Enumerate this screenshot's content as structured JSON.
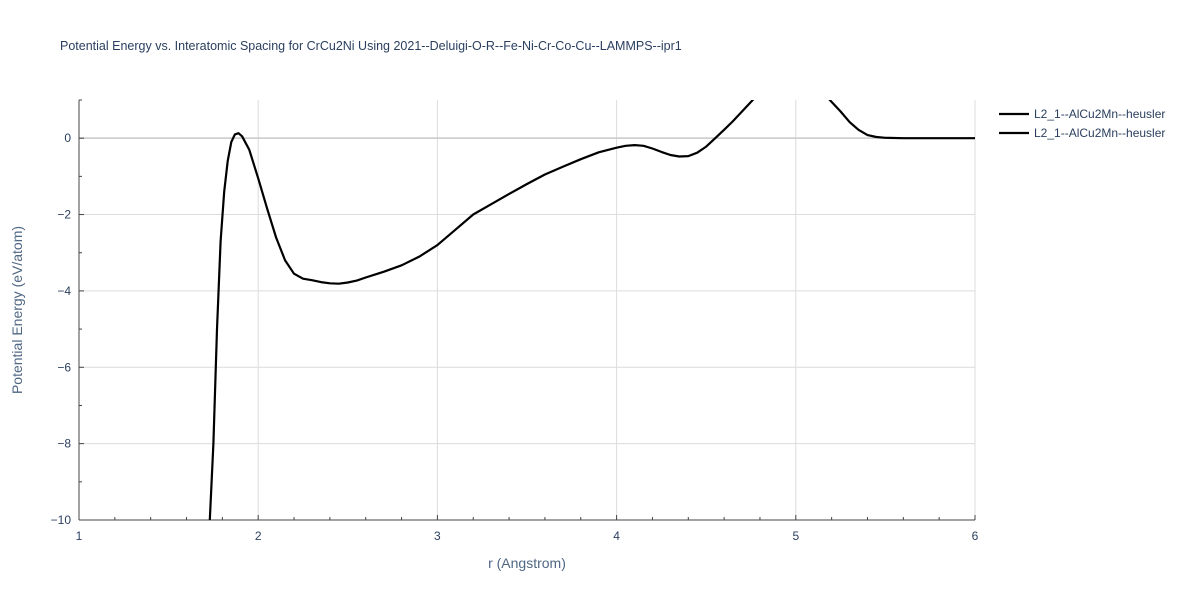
{
  "chart_data": {
    "type": "line",
    "title": "Potential Energy vs. Interatomic Spacing for CrCu2Ni Using 2021--Deluigi-O-R--Fe-Ni-Cr-Co-Cu--LAMMPS--ipr1",
    "xlabel": "r (Angstrom)",
    "ylabel": "Potential Energy (eV/atom)",
    "xlim": [
      1,
      6
    ],
    "ylim": [
      -10,
      1
    ],
    "x_ticks": [
      1,
      2,
      3,
      4,
      5,
      6
    ],
    "y_ticks": [
      0,
      -2,
      -4,
      -6,
      -8,
      -10
    ],
    "x_tick_labels": [
      "1",
      "2",
      "3",
      "4",
      "5",
      "6"
    ],
    "y_tick_labels": [
      "0",
      "−2",
      "−4",
      "−6",
      "−8",
      "−10"
    ],
    "grid": true,
    "legend_position": "top-right",
    "line_color": "#000000",
    "series": [
      {
        "name": "L2_1--AlCu2Mn--heusler",
        "x": [
          1.73,
          1.75,
          1.77,
          1.79,
          1.81,
          1.83,
          1.85,
          1.87,
          1.89,
          1.91,
          1.95,
          2.0,
          2.05,
          2.1,
          2.15,
          2.2,
          2.25,
          2.3,
          2.35,
          2.4,
          2.45,
          2.5,
          2.55,
          2.6,
          2.7,
          2.8,
          2.9,
          3.0,
          3.1,
          3.2,
          3.3,
          3.4,
          3.5,
          3.6,
          3.7,
          3.8,
          3.9,
          4.0,
          4.05,
          4.1,
          4.15,
          4.2,
          4.25,
          4.3,
          4.35,
          4.4,
          4.45,
          4.5,
          4.55,
          4.6,
          4.65,
          4.7,
          4.75,
          4.77
        ],
        "y": [
          -10.0,
          -8.0,
          -5.0,
          -2.7,
          -1.4,
          -0.6,
          -0.1,
          0.1,
          0.13,
          0.05,
          -0.3,
          -1.05,
          -1.85,
          -2.6,
          -3.2,
          -3.55,
          -3.68,
          -3.72,
          -3.77,
          -3.8,
          -3.81,
          -3.78,
          -3.73,
          -3.65,
          -3.5,
          -3.33,
          -3.1,
          -2.8,
          -2.4,
          -2.0,
          -1.73,
          -1.46,
          -1.2,
          -0.95,
          -0.75,
          -0.55,
          -0.37,
          -0.25,
          -0.2,
          -0.18,
          -0.2,
          -0.27,
          -0.36,
          -0.44,
          -0.48,
          -0.47,
          -0.38,
          -0.22,
          0.0,
          0.22,
          0.45,
          0.7,
          0.95,
          1.05
        ]
      },
      {
        "name": "L2_1--AlCu2Mn--heusler",
        "x": [
          5.18,
          5.2,
          5.25,
          5.3,
          5.35,
          5.4,
          5.45,
          5.5,
          5.6,
          5.7,
          5.8,
          5.9,
          6.0
        ],
        "y": [
          1.05,
          0.95,
          0.7,
          0.42,
          0.22,
          0.08,
          0.03,
          0.01,
          0.0,
          0.0,
          0.0,
          0.0,
          0.0
        ]
      }
    ]
  }
}
